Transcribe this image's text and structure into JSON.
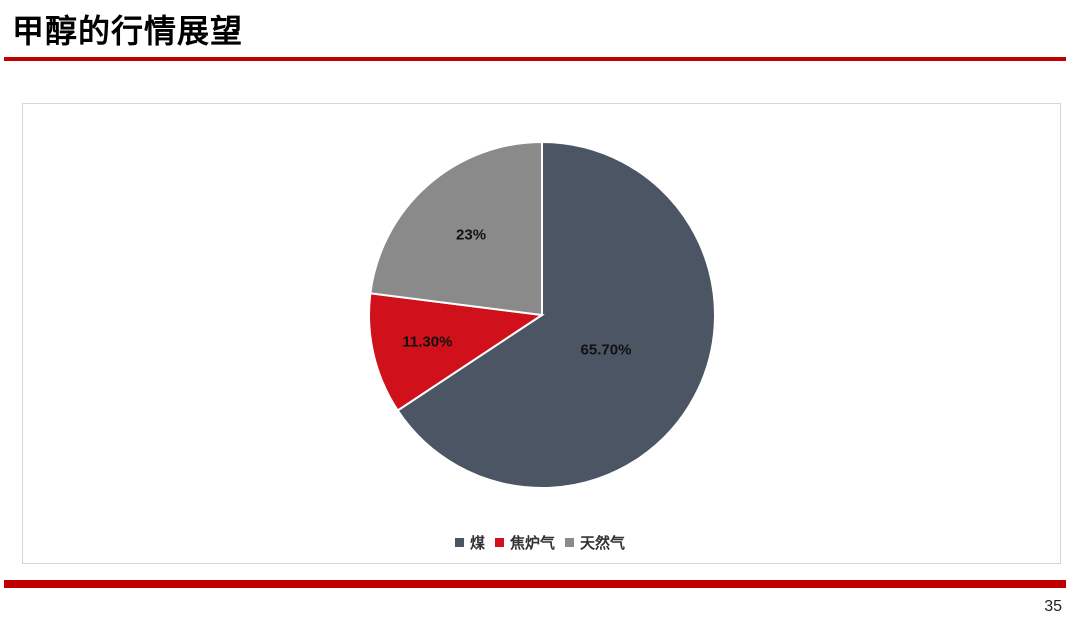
{
  "slide": {
    "title": "甲醇的行情展望",
    "page_number": "35"
  },
  "chart_data": {
    "type": "pie",
    "title": "",
    "categories": [
      "煤",
      "焦炉气",
      "天然气"
    ],
    "values": [
      65.7,
      11.3,
      23
    ],
    "labels": [
      "65.70%",
      "11.30%",
      "23%"
    ],
    "colors": [
      "#4b5563",
      "#d0101a",
      "#8a8a8a"
    ],
    "legend_position": "bottom",
    "start_angle": "12 o'clock",
    "direction": "clockwise"
  }
}
